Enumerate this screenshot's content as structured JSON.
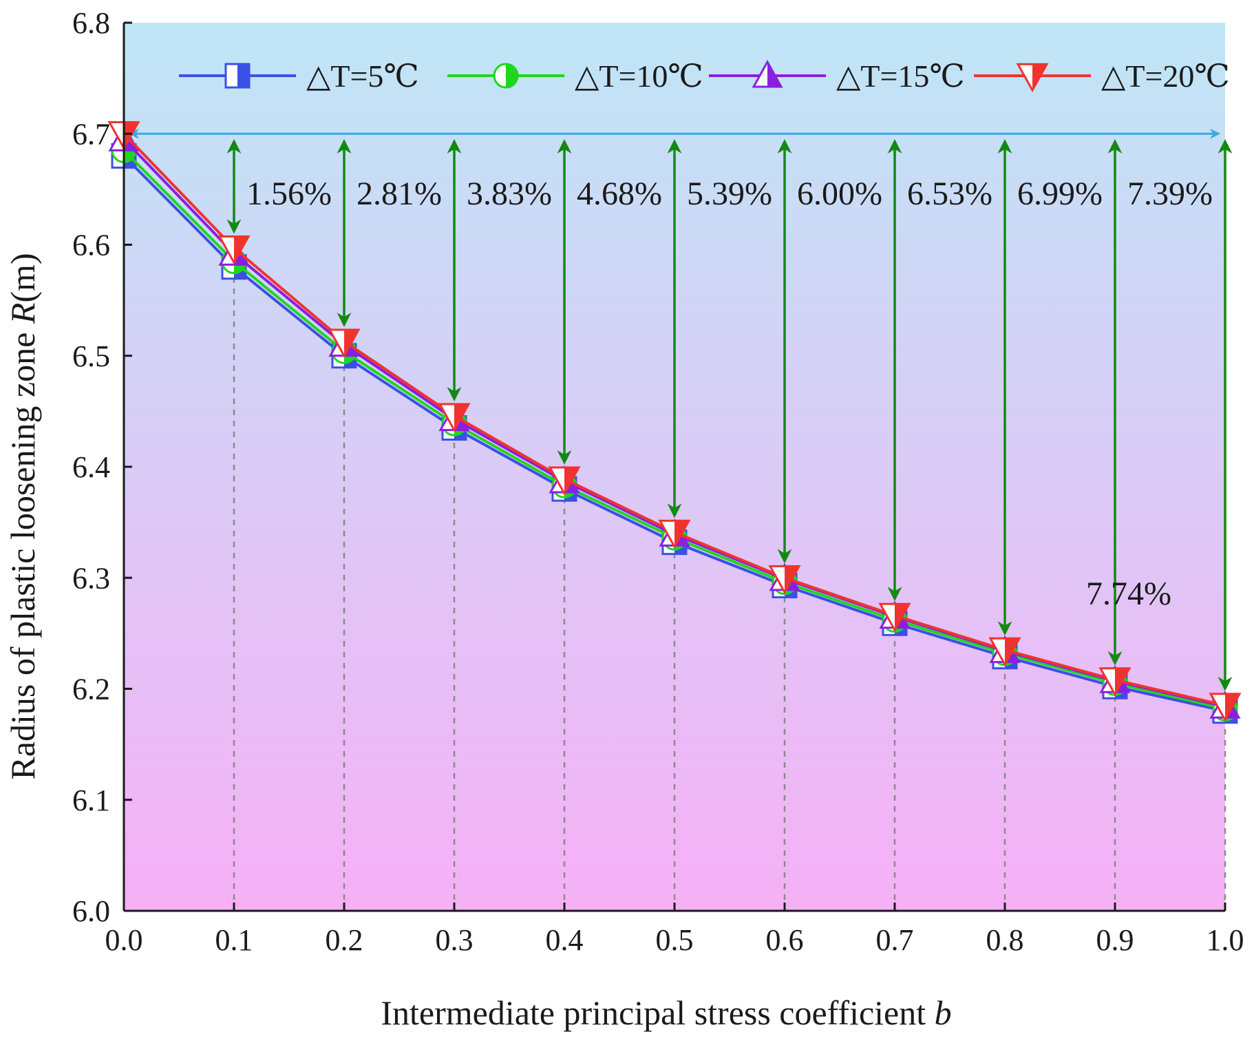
{
  "chart_data": {
    "type": "line",
    "xlabel": "Intermediate principal stress coefficient",
    "xlabel_var": "b",
    "ylabel": "Radius of plastic loosening zone",
    "ylabel_var": "R",
    "ylabel_unit": "(m)",
    "xlim": [
      0.0,
      1.0
    ],
    "ylim": [
      6.0,
      6.8
    ],
    "x": [
      0.0,
      0.1,
      0.2,
      0.3,
      0.4,
      0.5,
      0.6,
      0.7,
      0.8,
      0.9,
      1.0
    ],
    "x_tick_labels": [
      "0.0",
      "0.1",
      "0.2",
      "0.3",
      "0.4",
      "0.5",
      "0.6",
      "0.7",
      "0.8",
      "0.9",
      "1.0"
    ],
    "y_tick_labels": [
      "6.0",
      "6.1",
      "6.2",
      "6.3",
      "6.4",
      "6.5",
      "6.6",
      "6.7",
      "6.8"
    ],
    "y_ticks": [
      6.0,
      6.1,
      6.2,
      6.3,
      6.4,
      6.5,
      6.6,
      6.7,
      6.8
    ],
    "series": [
      {
        "name": "△T=5℃",
        "color": "#3a50e6",
        "marker": "square",
        "values": [
          6.68,
          6.58,
          6.5,
          6.435,
          6.38,
          6.332,
          6.293,
          6.259,
          6.229,
          6.202,
          6.18
        ]
      },
      {
        "name": "△T=10℃",
        "color": "#1ed61e",
        "marker": "circle",
        "values": [
          6.685,
          6.585,
          6.504,
          6.439,
          6.383,
          6.336,
          6.296,
          6.262,
          6.232,
          6.205,
          6.182
        ]
      },
      {
        "name": "△T=15℃",
        "color": "#8a1fe0",
        "marker": "triangle-up",
        "values": [
          6.695,
          6.592,
          6.51,
          6.443,
          6.387,
          6.339,
          6.299,
          6.265,
          6.234,
          6.207,
          6.184
        ]
      },
      {
        "name": "△T=20℃",
        "color": "#f0332f",
        "marker": "triangle-down",
        "values": [
          6.7,
          6.597,
          6.513,
          6.446,
          6.389,
          6.341,
          6.3,
          6.266,
          6.235,
          6.208,
          6.185
        ]
      }
    ],
    "reference_line": {
      "y": 6.7,
      "color": "#3aa9e6"
    },
    "reduction_annotations": [
      {
        "x": 0.1,
        "label": "1.56%"
      },
      {
        "x": 0.2,
        "label": "2.81%"
      },
      {
        "x": 0.3,
        "label": "3.83%"
      },
      {
        "x": 0.4,
        "label": "4.68%"
      },
      {
        "x": 0.5,
        "label": "5.39%"
      },
      {
        "x": 0.6,
        "label": "6.00%"
      },
      {
        "x": 0.7,
        "label": "6.53%"
      },
      {
        "x": 0.8,
        "label": "6.99%"
      },
      {
        "x": 0.9,
        "label": "7.39%"
      },
      {
        "x": 1.0,
        "label": "7.74%"
      }
    ],
    "arrow_color": "#128a12",
    "background_gradient": {
      "top": "#bfe6f6",
      "bottom": "#f6b0f6"
    },
    "legend_position": "top"
  }
}
